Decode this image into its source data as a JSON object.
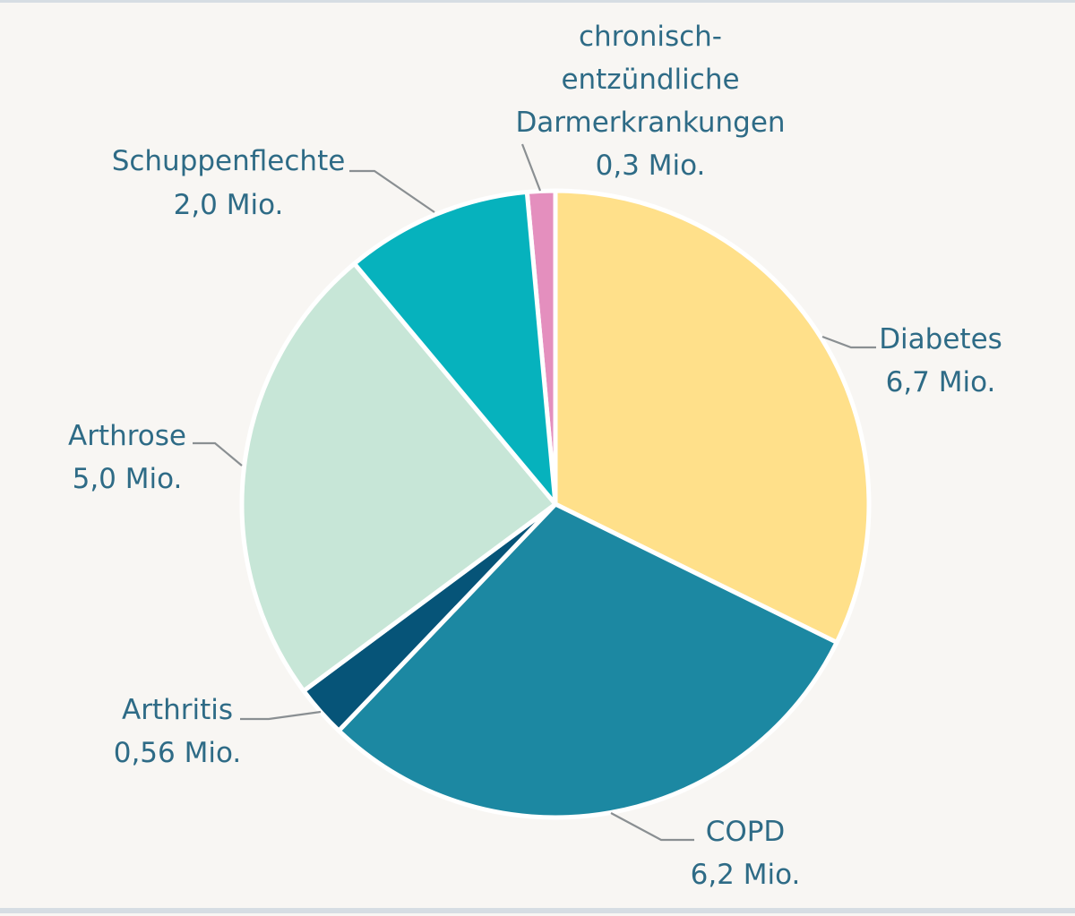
{
  "chart_data": {
    "type": "pie",
    "title": "",
    "unit": "Mio.",
    "slices": [
      {
        "name": "chronisch-entzündliche Darmerkrankungen",
        "label_lines": [
          "chronisch-",
          "entzündliche",
          "Darmerkrankungen"
        ],
        "value_text": "0,3 Mio.",
        "value": 0.3,
        "color": "#e48fbe"
      },
      {
        "name": "Diabetes",
        "label_lines": [
          "Diabetes"
        ],
        "value_text": "6,7 Mio.",
        "value": 6.7,
        "color": "#ffe08a"
      },
      {
        "name": "COPD",
        "label_lines": [
          "COPD"
        ],
        "value_text": "6,2 Mio.",
        "value": 6.2,
        "color": "#1c88a2"
      },
      {
        "name": "Arthritis",
        "label_lines": [
          "Arthritis"
        ],
        "value_text": "0,56 Mio.",
        "value": 0.56,
        "color": "#065478"
      },
      {
        "name": "Arthrose",
        "label_lines": [
          "Arthrose"
        ],
        "value_text": "5,0 Mio.",
        "value": 5.0,
        "color": "#c7e6d7"
      },
      {
        "name": "Schuppenflechte",
        "label_lines": [
          "Schuppenflechte"
        ],
        "value_text": "2,0 Mio.",
        "value": 2.0,
        "color": "#06b2bd"
      }
    ]
  }
}
